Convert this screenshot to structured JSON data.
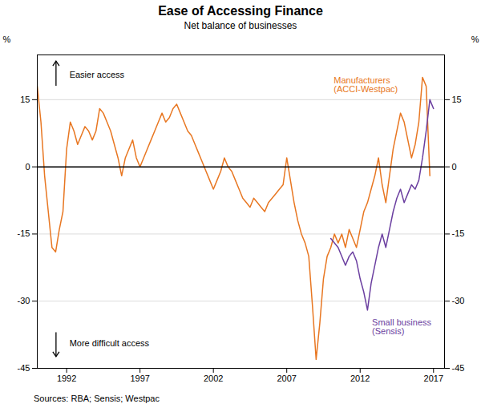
{
  "chart_data": {
    "type": "line",
    "title": "Ease of Accessing Finance",
    "subtitle": "Net balance of businesses",
    "source": "Sources: RBA; Sensis; Westpac",
    "ylabel": "%",
    "annotations": [
      "Easier access",
      "More difficult access"
    ],
    "xlim": [
      1990,
      2017.75
    ],
    "xticks": [
      1992,
      1997,
      2002,
      2007,
      2012,
      2017
    ],
    "ylim": [
      -45,
      25
    ],
    "yticks": [
      -45,
      -30,
      -15,
      0,
      15
    ],
    "grid": true,
    "series": [
      {
        "name": "Manufacturers\n(ACCI-Westpac)",
        "color": "#E87722",
        "x": [
          1990.0,
          1990.25,
          1990.5,
          1990.75,
          1991.0,
          1991.25,
          1991.5,
          1991.75,
          1992.0,
          1992.25,
          1992.5,
          1992.75,
          1993.0,
          1993.25,
          1993.5,
          1993.75,
          1994.0,
          1994.25,
          1994.5,
          1994.75,
          1995.0,
          1995.25,
          1995.5,
          1995.75,
          1996.0,
          1996.25,
          1996.5,
          1996.75,
          1997.0,
          1997.25,
          1997.5,
          1997.75,
          1998.0,
          1998.25,
          1998.5,
          1998.75,
          1999.0,
          1999.25,
          1999.5,
          1999.75,
          2000.0,
          2000.25,
          2000.5,
          2000.75,
          2001.0,
          2001.25,
          2001.5,
          2001.75,
          2002.0,
          2002.25,
          2002.5,
          2002.75,
          2003.0,
          2003.25,
          2003.5,
          2003.75,
          2004.0,
          2004.25,
          2004.5,
          2004.75,
          2005.0,
          2005.25,
          2005.5,
          2005.75,
          2006.0,
          2006.25,
          2006.5,
          2006.75,
          2007.0,
          2007.25,
          2007.5,
          2007.75,
          2008.0,
          2008.25,
          2008.5,
          2008.75,
          2009.0,
          2009.25,
          2009.5,
          2009.75,
          2010.0,
          2010.25,
          2010.5,
          2010.75,
          2011.0,
          2011.25,
          2011.5,
          2011.75,
          2012.0,
          2012.25,
          2012.5,
          2012.75,
          2013.0,
          2013.25,
          2013.5,
          2013.75,
          2014.0,
          2014.25,
          2014.5,
          2014.75,
          2015.0,
          2015.25,
          2015.5,
          2015.75,
          2016.0,
          2016.25,
          2016.5,
          2016.75
        ],
        "values": [
          18,
          10,
          -2,
          -10,
          -18,
          -19,
          -14,
          -10,
          4,
          10,
          8,
          5,
          7,
          9,
          8,
          6,
          8,
          13,
          12,
          10,
          8,
          5,
          2,
          -2,
          2,
          4,
          6,
          2,
          0,
          2,
          4,
          6,
          8,
          10,
          12,
          10,
          11,
          13,
          14,
          12,
          10,
          8,
          7,
          5,
          3,
          1,
          -1,
          -3,
          -5,
          -3,
          -1,
          2,
          0,
          -1,
          -3,
          -5,
          -7,
          -8,
          -9,
          -7,
          -8,
          -9,
          -10,
          -8,
          -7,
          -6,
          -5,
          -4,
          2,
          -3,
          -8,
          -12,
          -15,
          -17,
          -20,
          -31,
          -43,
          -35,
          -25,
          -20,
          -18,
          -15,
          -17,
          -15,
          -18,
          -14,
          -16,
          -18,
          -14,
          -10,
          -8,
          -5,
          -2,
          2,
          -4,
          -8,
          -2,
          4,
          8,
          12,
          10,
          6,
          2,
          5,
          10,
          20,
          18,
          -2
        ]
      },
      {
        "name": "Small business\n(Sensis)",
        "color": "#6B3FA0",
        "x": [
          2010.0,
          2010.5,
          2011.0,
          2011.25,
          2011.5,
          2011.75,
          2012.0,
          2012.25,
          2012.5,
          2012.75,
          2013.0,
          2013.25,
          2013.5,
          2013.75,
          2014.0,
          2014.25,
          2014.5,
          2014.75,
          2015.0,
          2015.25,
          2015.5,
          2015.75,
          2016.0,
          2016.25,
          2016.5,
          2016.75,
          2017.0
        ],
        "values": [
          -16,
          -18,
          -22,
          -20,
          -19,
          -21,
          -25,
          -28,
          -32,
          -26,
          -22,
          -18,
          -15,
          -18,
          -14,
          -10,
          -7,
          -5,
          -8,
          -6,
          -4,
          -5,
          -3,
          2,
          8,
          15,
          13
        ]
      }
    ]
  }
}
